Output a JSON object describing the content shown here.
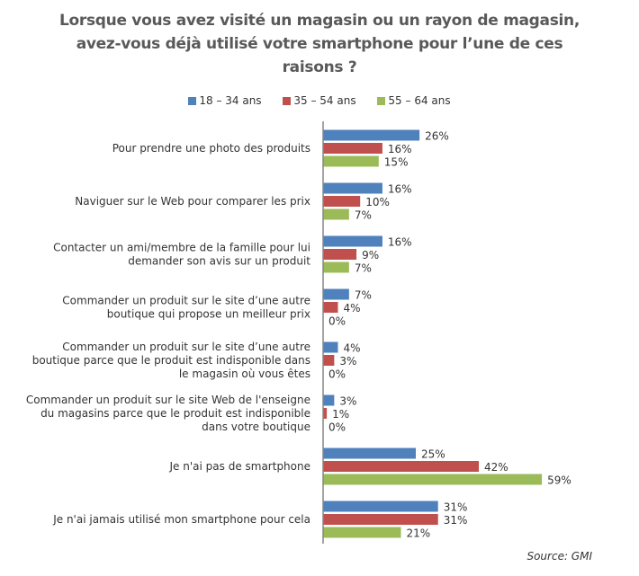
{
  "chart_data": {
    "type": "bar",
    "orientation": "horizontal",
    "title_lines": [
      "Lorsque vous avez visité un magasin ou un rayon de magasin,",
      "avez-vous déjà utilisé votre smartphone pour l’une de ces",
      "raisons ?"
    ],
    "legend_placement": "top-center",
    "categories": [
      [
        "Pour prendre une photo des produits"
      ],
      [
        "Naviguer sur le Web pour comparer les prix"
      ],
      [
        "Contacter un ami/membre de la famille pour lui",
        "demander son avis sur un produit"
      ],
      [
        "Commander un produit sur le site d’une autre",
        "boutique qui propose un meilleur prix"
      ],
      [
        "Commander un produit sur le site d’une autre",
        "boutique parce que le produit est indisponible dans",
        "le magasin où vous êtes"
      ],
      [
        "Commander un produit sur le site Web de l'enseigne",
        "du magasins parce que le produit est indisponible",
        "dans votre boutique"
      ],
      [
        "Je n'ai pas de smartphone"
      ],
      [
        "Je n'ai jamais utilisé mon smartphone pour cela"
      ]
    ],
    "series": [
      {
        "name": "18 – 34 ans",
        "color": "#4f81bd",
        "values": [
          26,
          16,
          16,
          7,
          4,
          3,
          25,
          31
        ]
      },
      {
        "name": "35 – 54 ans",
        "color": "#c0504d",
        "values": [
          16,
          10,
          9,
          4,
          3,
          1,
          42,
          31
        ]
      },
      {
        "name": "55 – 64 ans",
        "color": "#9bbb59",
        "values": [
          15,
          7,
          7,
          0,
          0,
          0,
          59,
          21
        ]
      }
    ],
    "value_suffix": "%",
    "xlim": [
      0,
      60
    ],
    "grid": false,
    "source": "Source: GMI"
  }
}
